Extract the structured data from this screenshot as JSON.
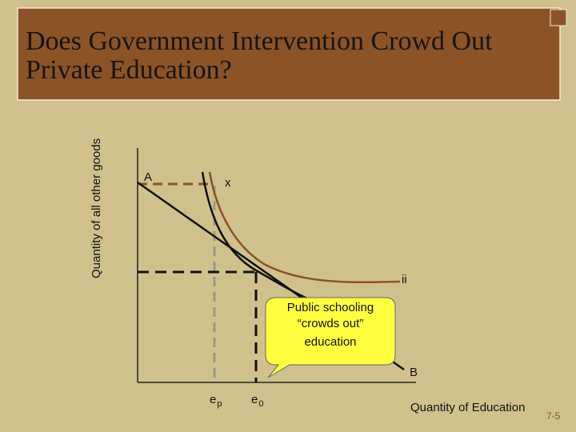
{
  "header": {
    "title_lines": [
      "Does Government Intervention Crowd Out",
      "Private Education?"
    ]
  },
  "diagram": {
    "y_axis_label": "Quantity of all other goods",
    "x_axis_label": "Quantity of Education",
    "point_labels": {
      "A": "A",
      "x": "x",
      "ii": "ii",
      "B": "B"
    },
    "x_markers": [
      {
        "base": "e",
        "sub": "p"
      },
      {
        "base": "e",
        "sub": "0"
      }
    ],
    "callout_lines": [
      "Public schooling",
      "“crowds out”",
      "education"
    ]
  },
  "footer": {
    "slide_number": "7-5"
  }
}
